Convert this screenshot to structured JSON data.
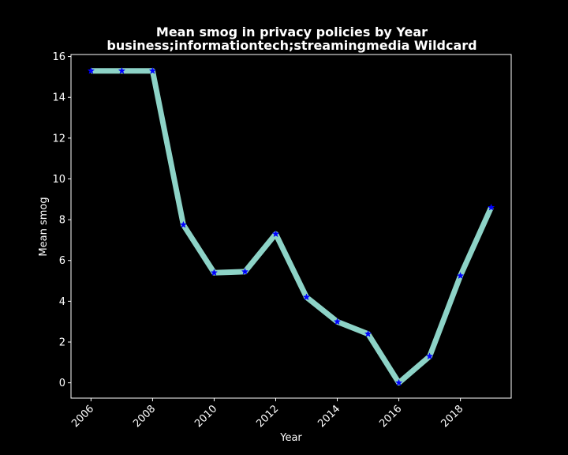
{
  "chart_data": {
    "type": "line",
    "title": "Mean smog in privacy policies by Year",
    "subtitle": "business;informationtech;streamingmedia Wildcard",
    "xlabel": "Year",
    "ylabel": "Mean smog",
    "x": [
      2006,
      2007,
      2008,
      2009,
      2010,
      2011,
      2012,
      2013,
      2014,
      2015,
      2016,
      2017,
      2018,
      2019
    ],
    "values": [
      15.3,
      15.3,
      15.3,
      7.75,
      5.4,
      5.45,
      7.3,
      4.2,
      3.0,
      2.4,
      0.0,
      1.3,
      5.25,
      8.6
    ],
    "xlim": [
      2005.35,
      2019.65
    ],
    "ylim": [
      -0.75,
      16.1
    ],
    "xticks": [
      2006,
      2008,
      2010,
      2012,
      2014,
      2016,
      2018
    ],
    "yticks": [
      0,
      2,
      4,
      6,
      8,
      10,
      12,
      14,
      16
    ],
    "grid": false,
    "colors": {
      "background": "#000000",
      "axes": "#ffffff",
      "text": "#ffffff",
      "line": "#8dd3c7",
      "marker": "#0000ff"
    },
    "marker": "star"
  }
}
